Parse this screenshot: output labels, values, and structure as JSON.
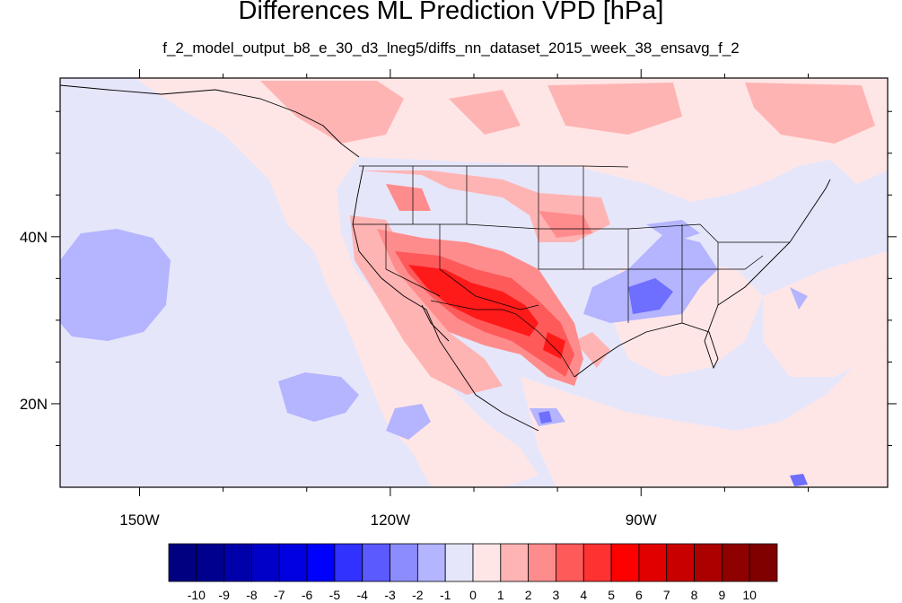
{
  "title": "Differences ML Prediction VPD [hPa]",
  "subtitle": "f_2_model_output_b8_e_30_d3_lneg5/diffs_nn_dataset_2015_week_38_ensavg_f_2",
  "map": {
    "projection": "lat-lon",
    "lon_range": [
      -159.5,
      -60.5
    ],
    "lat_range": [
      10,
      59
    ],
    "lat_ticks": [
      {
        "value": 40,
        "label": "40N"
      },
      {
        "value": 20,
        "label": "20N"
      }
    ],
    "lon_ticks": [
      {
        "value": -150,
        "label": "150W"
      },
      {
        "value": -120,
        "label": "120W"
      },
      {
        "value": -90,
        "label": "90W"
      }
    ],
    "background_value": -1,
    "features": [
      "coastlines",
      "US state boundaries",
      "country boundaries"
    ]
  },
  "colorbar": {
    "labels": [
      "-10",
      "-9",
      "-8",
      "-7",
      "-6",
      "-5",
      "-4",
      "-3",
      "-2",
      "-1",
      "0",
      "1",
      "2",
      "3",
      "4",
      "5",
      "6",
      "7",
      "8",
      "9",
      "10"
    ],
    "colors": [
      "#000080",
      "#00008f",
      "#0000aa",
      "#0000c8",
      "#0000e0",
      "#0000ff",
      "#3232ff",
      "#5a5aff",
      "#8c8cff",
      "#b4b4ff",
      "#e6e6fa",
      "#ffe6e6",
      "#ffb4b4",
      "#ff8c8c",
      "#ff5a5a",
      "#ff3232",
      "#ff0000",
      "#e00000",
      "#c80000",
      "#aa0000",
      "#8f0000",
      "#800000"
    ]
  }
}
